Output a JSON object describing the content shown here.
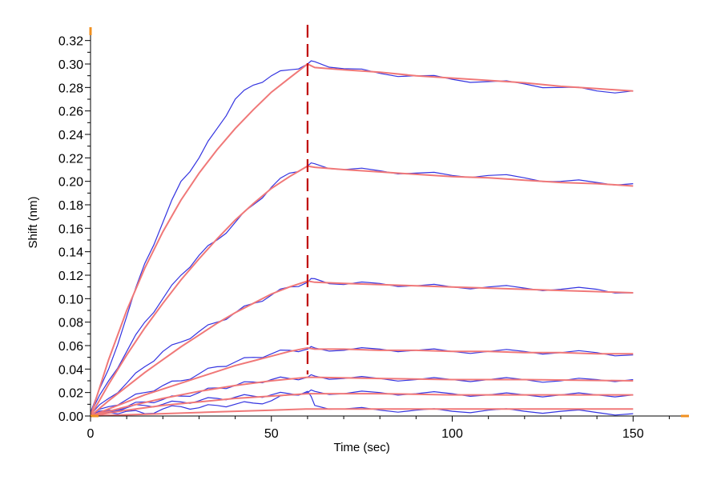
{
  "chart_data": {
    "type": "line",
    "title": "",
    "xlabel": "Time (sec)",
    "ylabel": "Shift (nm)",
    "xlim": [
      0,
      165
    ],
    "ylim": [
      0,
      0.33
    ],
    "xticks": [
      0,
      50,
      100,
      150
    ],
    "yticks": [
      0.0,
      0.02,
      0.04,
      0.06,
      0.08,
      0.1,
      0.12,
      0.14,
      0.16,
      0.18,
      0.2,
      0.22,
      0.24,
      0.26,
      0.28,
      0.3,
      0.32
    ],
    "ytick_labels": [
      "0.00",
      "0.02",
      "0.04",
      "0.06",
      "0.08",
      "0.10",
      "0.12",
      "0.14",
      "0.16",
      "0.18",
      "0.20",
      "0.22",
      "0.24",
      "0.26",
      "0.28",
      "0.30",
      "0.32"
    ],
    "xtick_labels": [
      "0",
      "50",
      "100",
      "150"
    ],
    "association_end_x": 60,
    "grid": false,
    "colors": {
      "measured": "#3333e0",
      "fit": "#f07878",
      "marker": "#c00000",
      "axis_end": "#f09020"
    },
    "series": [
      {
        "role": "measured",
        "x": [
          0,
          5,
          10,
          15,
          20,
          25,
          30,
          35,
          40,
          45,
          50,
          55,
          60,
          62,
          70,
          80,
          90,
          100,
          110,
          120,
          130,
          140,
          150
        ],
        "values": [
          0.003,
          0.04,
          0.085,
          0.13,
          0.165,
          0.2,
          0.22,
          0.245,
          0.27,
          0.282,
          0.29,
          0.295,
          0.3,
          0.302,
          0.296,
          0.292,
          0.29,
          0.287,
          0.285,
          0.283,
          0.28,
          0.277,
          0.277
        ]
      },
      {
        "role": "measured",
        "x": [
          0,
          5,
          10,
          15,
          20,
          25,
          30,
          35,
          40,
          45,
          50,
          55,
          60,
          62,
          70,
          80,
          90,
          100,
          110,
          120,
          130,
          140,
          150
        ],
        "values": [
          0.002,
          0.03,
          0.055,
          0.08,
          0.1,
          0.12,
          0.137,
          0.15,
          0.165,
          0.18,
          0.195,
          0.207,
          0.213,
          0.215,
          0.21,
          0.209,
          0.207,
          0.205,
          0.205,
          0.203,
          0.2,
          0.199,
          0.198
        ]
      },
      {
        "role": "measured",
        "x": [
          0,
          5,
          10,
          15,
          20,
          25,
          30,
          35,
          40,
          45,
          50,
          55,
          60,
          62,
          70,
          80,
          90,
          100,
          110,
          120,
          130,
          140,
          150
        ],
        "values": [
          0.001,
          0.015,
          0.028,
          0.042,
          0.055,
          0.063,
          0.072,
          0.08,
          0.088,
          0.096,
          0.103,
          0.11,
          0.114,
          0.117,
          0.112,
          0.113,
          0.111,
          0.11,
          0.11,
          0.109,
          0.108,
          0.108,
          0.105
        ]
      },
      {
        "role": "measured",
        "x": [
          0,
          5,
          10,
          15,
          20,
          25,
          30,
          35,
          40,
          45,
          50,
          55,
          60,
          62,
          70,
          80,
          90,
          100,
          110,
          120,
          130,
          140,
          150
        ],
        "values": [
          0.0,
          0.008,
          0.014,
          0.02,
          0.026,
          0.03,
          0.036,
          0.042,
          0.046,
          0.05,
          0.053,
          0.056,
          0.057,
          0.058,
          0.056,
          0.057,
          0.056,
          0.055,
          0.055,
          0.055,
          0.054,
          0.054,
          0.052
        ]
      },
      {
        "role": "measured",
        "x": [
          0,
          5,
          10,
          15,
          20,
          25,
          30,
          35,
          40,
          45,
          50,
          55,
          60,
          62,
          70,
          80,
          90,
          100,
          110,
          120,
          130,
          140,
          150
        ],
        "values": [
          0.0,
          0.005,
          0.008,
          0.012,
          0.014,
          0.017,
          0.02,
          0.024,
          0.026,
          0.029,
          0.031,
          0.032,
          0.033,
          0.034,
          0.032,
          0.032,
          0.031,
          0.031,
          0.031,
          0.031,
          0.03,
          0.031,
          0.031
        ]
      },
      {
        "role": "measured",
        "x": [
          0,
          5,
          10,
          15,
          20,
          25,
          30,
          35,
          40,
          45,
          50,
          55,
          60,
          62,
          70,
          80,
          90,
          100,
          110,
          120,
          130,
          140,
          150
        ],
        "values": [
          0.0,
          0.004,
          0.007,
          0.009,
          0.01,
          0.012,
          0.013,
          0.015,
          0.016,
          0.017,
          0.018,
          0.019,
          0.02,
          0.021,
          0.019,
          0.02,
          0.019,
          0.019,
          0.018,
          0.018,
          0.018,
          0.018,
          0.018
        ]
      },
      {
        "role": "measured",
        "x": [
          0,
          5,
          10,
          15,
          20,
          25,
          30,
          35,
          40,
          45,
          50,
          55,
          60,
          62,
          70,
          80,
          90,
          100,
          110,
          120,
          130,
          140,
          150
        ],
        "values": [
          0.0,
          0.003,
          0.004,
          0.002,
          0.006,
          0.008,
          0.007,
          0.009,
          0.01,
          0.011,
          0.013,
          0.018,
          0.021,
          0.009,
          0.006,
          0.005,
          0.005,
          0.004,
          0.005,
          0.004,
          0.004,
          0.003,
          0.002
        ]
      }
    ],
    "fits": [
      {
        "role": "fit",
        "x": [
          0,
          5,
          10,
          15,
          20,
          25,
          30,
          35,
          40,
          45,
          50,
          55,
          60,
          62,
          70,
          80,
          90,
          100,
          110,
          120,
          130,
          140,
          150
        ],
        "values": [
          0.0,
          0.048,
          0.09,
          0.126,
          0.157,
          0.184,
          0.207,
          0.227,
          0.245,
          0.261,
          0.276,
          0.288,
          0.3,
          0.297,
          0.295,
          0.293,
          0.29,
          0.288,
          0.286,
          0.284,
          0.281,
          0.279,
          0.277
        ]
      },
      {
        "role": "fit",
        "x": [
          0,
          5,
          10,
          15,
          20,
          25,
          30,
          35,
          40,
          45,
          50,
          55,
          60,
          62,
          70,
          80,
          90,
          100,
          110,
          120,
          130,
          140,
          150
        ],
        "values": [
          0.0,
          0.027,
          0.052,
          0.075,
          0.096,
          0.116,
          0.134,
          0.151,
          0.167,
          0.181,
          0.194,
          0.204,
          0.213,
          0.212,
          0.21,
          0.208,
          0.206,
          0.204,
          0.203,
          0.201,
          0.199,
          0.198,
          0.196
        ]
      },
      {
        "role": "fit",
        "x": [
          0,
          5,
          10,
          15,
          20,
          25,
          30,
          35,
          40,
          45,
          50,
          55,
          60,
          62,
          70,
          80,
          90,
          100,
          110,
          120,
          130,
          140,
          150
        ],
        "values": [
          0.0,
          0.013,
          0.025,
          0.037,
          0.048,
          0.059,
          0.069,
          0.079,
          0.088,
          0.096,
          0.104,
          0.11,
          0.115,
          0.114,
          0.113,
          0.112,
          0.111,
          0.11,
          0.109,
          0.108,
          0.107,
          0.106,
          0.105
        ]
      },
      {
        "role": "fit",
        "x": [
          0,
          5,
          10,
          15,
          20,
          25,
          30,
          35,
          40,
          45,
          50,
          55,
          60,
          62,
          70,
          80,
          90,
          100,
          110,
          120,
          130,
          140,
          150
        ],
        "values": [
          0.0,
          0.006,
          0.012,
          0.018,
          0.023,
          0.028,
          0.033,
          0.038,
          0.043,
          0.047,
          0.051,
          0.055,
          0.058,
          0.057,
          0.057,
          0.056,
          0.056,
          0.055,
          0.055,
          0.054,
          0.054,
          0.053,
          0.053
        ]
      },
      {
        "role": "fit",
        "x": [
          0,
          10,
          20,
          30,
          40,
          50,
          60,
          62,
          80,
          100,
          120,
          150
        ],
        "values": [
          0.0,
          0.008,
          0.015,
          0.021,
          0.026,
          0.03,
          0.033,
          0.033,
          0.032,
          0.031,
          0.031,
          0.03
        ]
      },
      {
        "role": "fit",
        "x": [
          0,
          10,
          20,
          30,
          40,
          50,
          60,
          62,
          80,
          100,
          120,
          150
        ],
        "values": [
          0.0,
          0.005,
          0.009,
          0.012,
          0.015,
          0.017,
          0.019,
          0.019,
          0.019,
          0.018,
          0.018,
          0.018
        ]
      },
      {
        "role": "fit",
        "x": [
          0,
          10,
          20,
          30,
          40,
          50,
          60,
          62,
          80,
          100,
          120,
          150
        ],
        "values": [
          0.0,
          0.001,
          0.002,
          0.003,
          0.004,
          0.005,
          0.006,
          0.006,
          0.006,
          0.006,
          0.006,
          0.006
        ]
      }
    ]
  }
}
